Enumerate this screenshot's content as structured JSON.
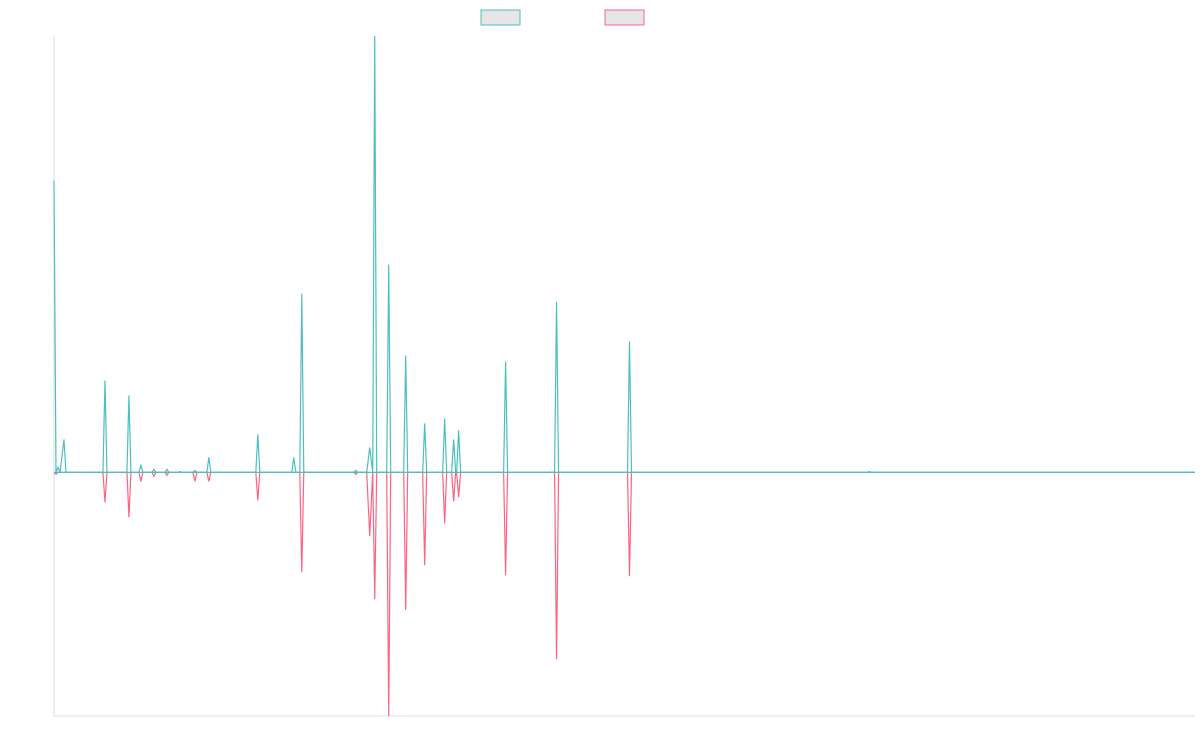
{
  "chart_data": {
    "type": "line",
    "title": "",
    "xlabel": "",
    "ylabel": "",
    "xlim": [
      0,
      1142
    ],
    "ylim": [
      -244,
      437
    ],
    "grid": false,
    "legend_position": "top-center",
    "baseline": 0,
    "colors": {
      "teal": "#4bc0c0",
      "pink": "#ff6384",
      "legend_fill": "#e6e6e6"
    },
    "series": [
      {
        "color": "#4bc0c0",
        "points": [
          [
            0,
            292
          ],
          [
            2,
            0
          ],
          [
            4,
            5
          ],
          [
            6,
            0
          ],
          [
            10,
            33
          ],
          [
            12,
            0
          ],
          [
            22,
            0
          ],
          [
            49,
            0
          ],
          [
            51,
            92
          ],
          [
            53,
            0
          ],
          [
            73,
            0
          ],
          [
            75,
            77
          ],
          [
            77,
            0
          ],
          [
            85,
            0
          ],
          [
            87,
            7
          ],
          [
            89,
            0
          ],
          [
            98,
            0
          ],
          [
            100,
            3
          ],
          [
            102,
            0
          ],
          [
            111,
            0
          ],
          [
            113,
            3
          ],
          [
            115,
            0
          ],
          [
            124,
            0
          ],
          [
            126,
            1
          ],
          [
            128,
            0
          ],
          [
            139,
            0
          ],
          [
            141,
            2
          ],
          [
            143,
            0
          ],
          [
            153,
            0
          ],
          [
            155,
            15
          ],
          [
            157,
            0
          ],
          [
            202,
            0
          ],
          [
            204,
            38
          ],
          [
            206,
            0
          ],
          [
            238,
            0
          ],
          [
            240,
            15
          ],
          [
            242,
            0
          ],
          [
            246,
            0
          ],
          [
            248,
            179
          ],
          [
            250,
            0
          ],
          [
            300,
            0
          ],
          [
            302,
            2
          ],
          [
            304,
            0
          ],
          [
            313,
            0
          ],
          [
            316,
            25
          ],
          [
            319,
            0
          ],
          [
            319,
            0
          ],
          [
            321,
            437
          ],
          [
            323,
            0
          ],
          [
            333,
            0
          ],
          [
            335,
            208
          ],
          [
            337,
            0
          ],
          [
            350,
            0
          ],
          [
            352,
            117
          ],
          [
            354,
            0
          ],
          [
            369,
            0
          ],
          [
            371,
            49
          ],
          [
            373,
            0
          ],
          [
            389,
            0
          ],
          [
            391,
            54
          ],
          [
            393,
            0
          ],
          [
            398,
            0
          ],
          [
            400,
            33
          ],
          [
            402,
            0
          ],
          [
            403,
            0
          ],
          [
            405,
            42
          ],
          [
            407,
            0
          ],
          [
            450,
            0
          ],
          [
            452,
            111
          ],
          [
            454,
            0
          ],
          [
            501,
            0
          ],
          [
            503,
            171
          ],
          [
            505,
            0
          ],
          [
            574,
            0
          ],
          [
            576,
            131
          ],
          [
            578,
            0
          ],
          [
            814,
            0
          ],
          [
            816,
            1
          ],
          [
            818,
            0
          ],
          [
            1142,
            0
          ]
        ]
      },
      {
        "color": "#ff6384",
        "points": [
          [
            0,
            0
          ],
          [
            2,
            -2
          ],
          [
            4,
            0
          ],
          [
            49,
            0
          ],
          [
            51,
            -30
          ],
          [
            53,
            0
          ],
          [
            73,
            0
          ],
          [
            75,
            -45
          ],
          [
            77,
            0
          ],
          [
            85,
            0
          ],
          [
            87,
            -9
          ],
          [
            89,
            0
          ],
          [
            98,
            0
          ],
          [
            100,
            -4
          ],
          [
            102,
            0
          ],
          [
            111,
            0
          ],
          [
            113,
            -3
          ],
          [
            115,
            0
          ],
          [
            139,
            0
          ],
          [
            141,
            -9
          ],
          [
            143,
            0
          ],
          [
            153,
            0
          ],
          [
            155,
            -9
          ],
          [
            157,
            0
          ],
          [
            202,
            0
          ],
          [
            204,
            -28
          ],
          [
            206,
            0
          ],
          [
            246,
            0
          ],
          [
            248,
            -100
          ],
          [
            250,
            0
          ],
          [
            300,
            0
          ],
          [
            302,
            -2
          ],
          [
            304,
            0
          ],
          [
            313,
            0
          ],
          [
            316,
            -64
          ],
          [
            319,
            0
          ],
          [
            319,
            0
          ],
          [
            321,
            -127
          ],
          [
            323,
            0
          ],
          [
            333,
            0
          ],
          [
            335,
            -244
          ],
          [
            337,
            0
          ],
          [
            350,
            0
          ],
          [
            352,
            -138
          ],
          [
            354,
            0
          ],
          [
            369,
            0
          ],
          [
            371,
            -93
          ],
          [
            373,
            0
          ],
          [
            389,
            0
          ],
          [
            391,
            -51
          ],
          [
            393,
            0
          ],
          [
            398,
            0
          ],
          [
            400,
            -29
          ],
          [
            402,
            0
          ],
          [
            403,
            0
          ],
          [
            405,
            -25
          ],
          [
            407,
            0
          ],
          [
            450,
            0
          ],
          [
            452,
            -103
          ],
          [
            454,
            0
          ],
          [
            501,
            0
          ],
          [
            503,
            -187
          ],
          [
            505,
            0
          ],
          [
            574,
            0
          ],
          [
            576,
            -104
          ],
          [
            578,
            0
          ],
          [
            1142,
            0
          ]
        ]
      }
    ]
  }
}
